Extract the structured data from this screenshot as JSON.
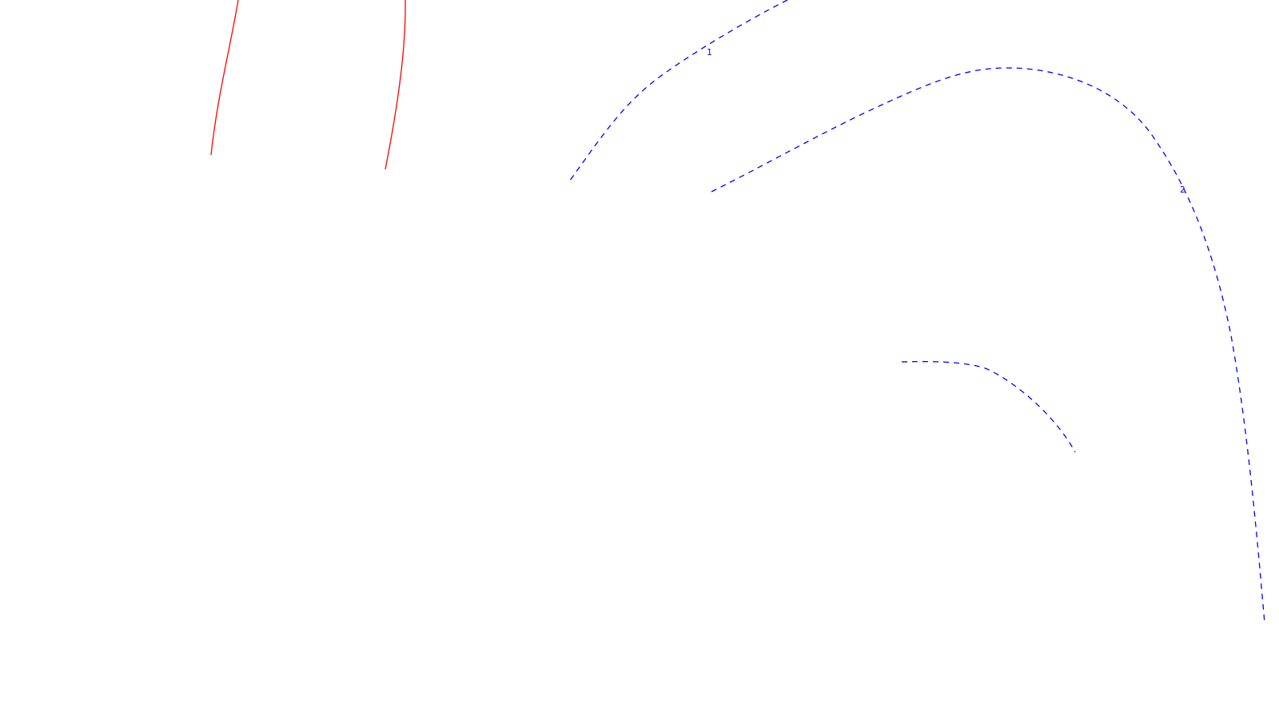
{
  "colors": {
    "background": "#ffffff",
    "solid_lines": "#ff0000",
    "dashed_lines": "#0000ff"
  },
  "line_styles": {
    "red_lines": "solid",
    "blue_lines": "dashed"
  },
  "contour_labels": {
    "label_1": "1",
    "label_2": "2"
  }
}
